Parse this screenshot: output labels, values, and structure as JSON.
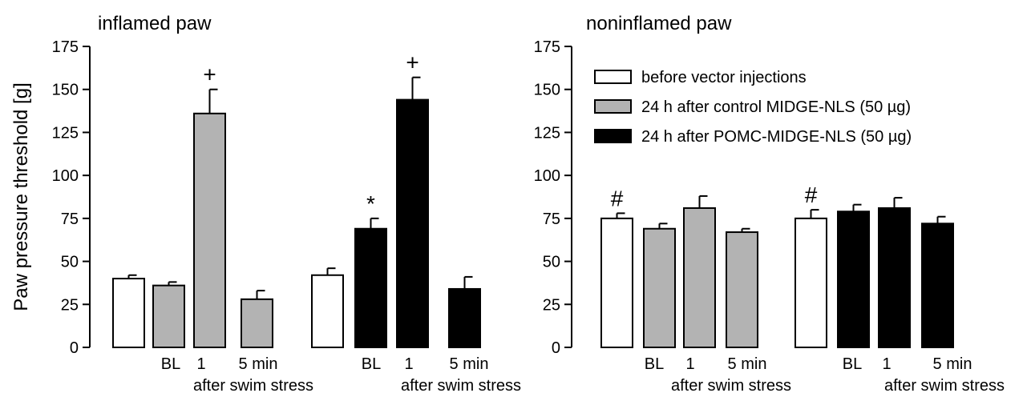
{
  "chart_data": [
    {
      "type": "bar",
      "title": "inflamed paw",
      "ylabel": "Paw pressure threshold [g]",
      "ylim": [
        0,
        175
      ],
      "yticks": [
        0,
        25,
        50,
        75,
        100,
        125,
        150,
        175
      ],
      "groups": [
        {
          "bars": [
            {
              "series": "before",
              "value": 40,
              "error": 2,
              "x_label": ""
            },
            {
              "series": "control",
              "value": 36,
              "error": 2,
              "x_label": "BL"
            },
            {
              "series": "control",
              "value": 136,
              "error": 14,
              "x_label": "1",
              "marker": "+"
            },
            {
              "series": "control",
              "value": 28,
              "error": 5,
              "x_label": "5 min"
            }
          ],
          "group_label": "after swim stress"
        },
        {
          "bars": [
            {
              "series": "before",
              "value": 42,
              "error": 4,
              "x_label": ""
            },
            {
              "series": "pomc",
              "value": 69,
              "error": 6,
              "x_label": "BL",
              "marker": "*"
            },
            {
              "series": "pomc",
              "value": 144,
              "error": 13,
              "x_label": "1",
              "marker": "+"
            },
            {
              "series": "pomc",
              "value": 34,
              "error": 7,
              "x_label": "5 min"
            }
          ],
          "group_label": "after swim stress"
        }
      ]
    },
    {
      "type": "bar",
      "title": "noninflamed paw",
      "ylabel": "",
      "ylim": [
        0,
        175
      ],
      "yticks": [
        0,
        25,
        50,
        75,
        100,
        125,
        150,
        175
      ],
      "groups": [
        {
          "bars": [
            {
              "series": "before",
              "value": 75,
              "error": 3,
              "x_label": "",
              "marker": "#"
            },
            {
              "series": "control",
              "value": 69,
              "error": 3,
              "x_label": "BL"
            },
            {
              "series": "control",
              "value": 81,
              "error": 7,
              "x_label": "1"
            },
            {
              "series": "control",
              "value": 67,
              "error": 2,
              "x_label": "5 min"
            }
          ],
          "group_label": "after swim stress"
        },
        {
          "bars": [
            {
              "series": "before",
              "value": 75,
              "error": 5,
              "x_label": "",
              "marker": "#"
            },
            {
              "series": "pomc",
              "value": 79,
              "error": 4,
              "x_label": "BL"
            },
            {
              "series": "pomc",
              "value": 81,
              "error": 6,
              "x_label": "1"
            },
            {
              "series": "pomc",
              "value": 72,
              "error": 4,
              "x_label": "5 min"
            }
          ],
          "group_label": "after swim stress"
        }
      ]
    }
  ],
  "legend": {
    "placement": "top-right of right panel",
    "entries": [
      {
        "series": "before",
        "label": "before vector injections"
      },
      {
        "series": "control",
        "label": "24 h after control MIDGE-NLS (50 µg)"
      },
      {
        "series": "pomc",
        "label": "24 h after POMC-MIDGE-NLS (50 µg)"
      }
    ]
  },
  "colors": {
    "before": "#ffffff",
    "control": "#b3b3b3",
    "pomc": "#000000",
    "stroke": "#000000"
  }
}
